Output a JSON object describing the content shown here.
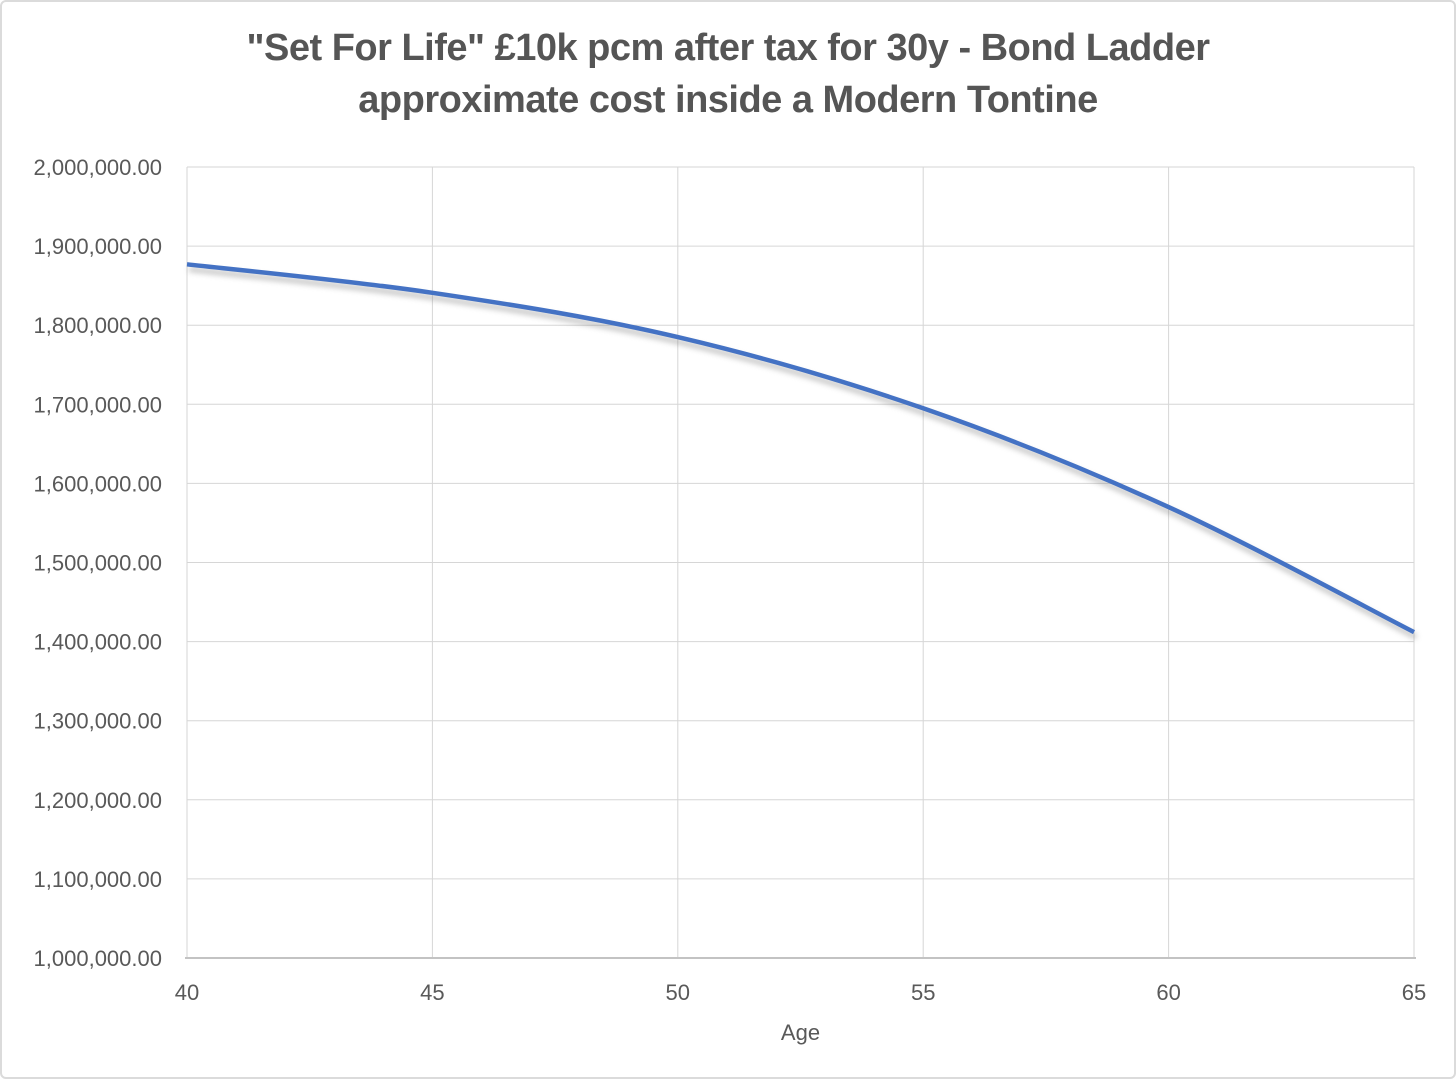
{
  "chart": {
    "title_lines": [
      "\"Set For Life\" £10k pcm after tax for 30y - Bond Ladder",
      "approximate cost inside a Modern Tontine"
    ]
  },
  "chart_data": {
    "type": "line",
    "title": "\"Set For Life\" £10k pcm after tax for 30y - Bond Ladder approximate cost inside a Modern Tontine",
    "xlabel": "Age",
    "ylabel": "",
    "x": [
      40,
      45,
      50,
      55,
      60,
      65
    ],
    "values": [
      1877000,
      1841000,
      1785000,
      1695000,
      1570000,
      1412000
    ],
    "xlim": [
      40,
      65
    ],
    "ylim": [
      1000000,
      2000000
    ],
    "x_tick_labels": [
      "40",
      "45",
      "50",
      "55",
      "60",
      "65"
    ],
    "x_tick_values": [
      40,
      45,
      50,
      55,
      60,
      65
    ],
    "y_tick_labels": [
      "1,000,000.00",
      "1,100,000.00",
      "1,200,000.00",
      "1,300,000.00",
      "1,400,000.00",
      "1,500,000.00",
      "1,600,000.00",
      "1,700,000.00",
      "1,800,000.00",
      "1,900,000.00",
      "2,000,000.00"
    ],
    "y_tick_values": [
      1000000,
      1100000,
      1200000,
      1300000,
      1400000,
      1500000,
      1600000,
      1700000,
      1800000,
      1900000,
      2000000
    ],
    "grid": true,
    "legend": false,
    "line_width": 4.5,
    "colors": {
      "line": "#4472C4",
      "gridline": "#D6D6D6",
      "axis": "#C3C3C3",
      "tick_text": "#595959",
      "title_text": "#555555"
    }
  }
}
